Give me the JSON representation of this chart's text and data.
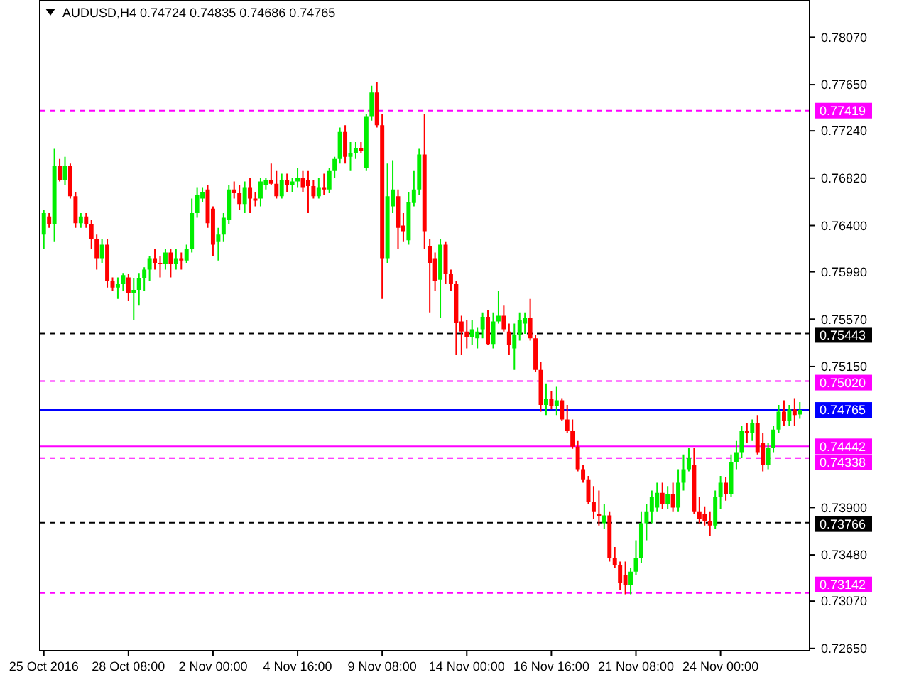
{
  "chart_data": {
    "type": "candlestick",
    "title": "AUDUSD,H4  0.74724 0.74835 0.74686 0.74765",
    "categories": [
      "25 Oct 2016",
      null,
      null,
      null,
      null,
      null,
      null,
      null,
      null,
      null,
      null,
      null,
      null,
      null,
      null,
      null,
      "28 Oct 08:00",
      null,
      null,
      null,
      null,
      null,
      null,
      null,
      null,
      null,
      null,
      null,
      null,
      null,
      null,
      null,
      "2 Nov 00:00",
      null,
      null,
      null,
      null,
      null,
      null,
      null,
      null,
      null,
      null,
      null,
      null,
      null,
      null,
      null,
      "4 Nov 16:00",
      null,
      null,
      null,
      null,
      null,
      null,
      null,
      null,
      null,
      null,
      null,
      null,
      null,
      null,
      null,
      "9 Nov 08:00",
      null,
      null,
      null,
      null,
      null,
      null,
      null,
      null,
      null,
      null,
      null,
      null,
      null,
      null,
      null,
      "14 Nov 00:00",
      null,
      null,
      null,
      null,
      null,
      null,
      null,
      null,
      null,
      null,
      null,
      null,
      null,
      null,
      null,
      "16 Nov 16:00",
      null,
      null,
      null,
      null,
      null,
      null,
      null,
      null,
      null,
      null,
      null,
      null,
      null,
      null,
      null,
      "21 Nov 08:00",
      null,
      null,
      null,
      null,
      null,
      null,
      null,
      null,
      null,
      null,
      null,
      null,
      null,
      null,
      null,
      "24 Nov 00:00",
      null,
      null,
      null,
      null,
      null,
      null,
      null,
      null,
      null,
      null,
      null,
      null,
      null,
      null,
      null
    ],
    "colors": [
      "#00ee00",
      "#ff0000",
      "#00ee00",
      "#ff0000",
      "#00ee00",
      "#ff0000",
      "#ff0000",
      "#00ee00",
      "#ff0000",
      "#ff0000",
      "#ff0000",
      "#00ee00",
      "#ff0000",
      "#ff0000",
      "#00ee00",
      "#00ee00",
      "#ff0000",
      "#00ee00",
      "#00ee00",
      "#00ee00",
      "#00ee00",
      "#ff0000",
      "#ff0000",
      "#00ee00",
      "#ff0000",
      "#00ee00",
      "#ff0000",
      "#00ee00",
      "#00ee00",
      "#00ee00",
      "#00ee00",
      "#ff0000",
      "#ff0000",
      "#00ee00",
      "#00ee00",
      "#00ee00",
      "#ff0000",
      "#ff0000",
      "#00ee00",
      "#ff0000",
      "#ff0000",
      "#00ee00",
      "#00ee00",
      "#ff0000",
      "#ff0000",
      "#00ee00",
      "#ff0000",
      "#00ee00",
      "#00ee00",
      "#ff0000",
      "#ff0000",
      "#ff0000",
      "#00ee00",
      "#ff0000",
      "#00ee00",
      "#00ee00",
      "#00ee00",
      "#ff0000",
      "#00ee00",
      "#00ee00",
      "#ff0000",
      "#00ee00",
      "#00ee00",
      "#ff0000",
      "#ff0000",
      "#00ee00",
      "#00ee00",
      "#ff0000",
      "#ff0000",
      "#00ee00",
      "#00ee00",
      "#00ee00",
      "#ff0000",
      "#ff0000",
      "#ff0000",
      "#00ee00",
      "#ff0000",
      "#ff0000",
      "#ff0000",
      "#ff0000",
      "#ff0000",
      "#00ee00",
      "#00ee00",
      "#00ee00",
      "#ff0000",
      "#00ee00",
      "#00ee00",
      "#ff0000",
      "#ff0000",
      "#00ee00",
      "#00ee00",
      "#00ee00",
      "#ff0000",
      "#ff0000",
      "#ff0000",
      "#00ee00",
      "#ff0000",
      "#00ee00",
      "#ff0000",
      "#ff0000",
      "#ff0000",
      "#ff0000",
      "#ff0000",
      "#ff0000",
      "#ff0000",
      "#ff0000",
      "#00ee00",
      "#ff0000",
      "#ff0000",
      "#ff0000",
      "#ff0000",
      "#00ee00",
      "#00ee00",
      "#00ee00",
      "#00ee00",
      "#00ee00",
      "#00ee00",
      "#ff0000",
      "#00ee00",
      "#ff0000",
      "#00ee00",
      "#00ee00",
      "#00ee00",
      "#ff0000",
      "#ff0000",
      "#ff0000",
      "#ff0000",
      "#00ee00",
      "#00ee00",
      "#ff0000",
      "#00ee00",
      "#00ee00",
      "#00ee00",
      "#ff0000",
      "#00ee00",
      "#ff0000",
      "#ff0000",
      "#00ee00",
      "#00ee00",
      "#00ee00",
      "#ff0000",
      "#00ee00",
      "#ff0000",
      "#00ee00"
    ],
    "ohlc": [
      [
        0.7632,
        0.7654,
        0.7619,
        0.7651
      ],
      [
        0.7648,
        0.7651,
        0.7638,
        0.7641
      ],
      [
        0.7641,
        0.7708,
        0.7626,
        0.7693
      ],
      [
        0.7693,
        0.7699,
        0.7679,
        0.768
      ],
      [
        0.768,
        0.7701,
        0.7676,
        0.7693
      ],
      [
        0.7693,
        0.7695,
        0.7664,
        0.7666
      ],
      [
        0.7666,
        0.767,
        0.7638,
        0.7642
      ],
      [
        0.7642,
        0.7651,
        0.7638,
        0.7648
      ],
      [
        0.7648,
        0.7651,
        0.7638,
        0.7641
      ],
      [
        0.7641,
        0.7645,
        0.7619,
        0.7628
      ],
      [
        0.7628,
        0.7632,
        0.7601,
        0.7611
      ],
      [
        0.7611,
        0.7628,
        0.7607,
        0.7623
      ],
      [
        0.7623,
        0.7628,
        0.7585,
        0.7591
      ],
      [
        0.7591,
        0.7594,
        0.7582,
        0.7585
      ],
      [
        0.7585,
        0.7594,
        0.7575,
        0.7588
      ],
      [
        0.7588,
        0.7598,
        0.7582,
        0.7596
      ],
      [
        0.7594,
        0.7597,
        0.7573,
        0.758
      ],
      [
        0.758,
        0.7593,
        0.7556,
        0.7583
      ],
      [
        0.7583,
        0.7598,
        0.7569,
        0.7593
      ],
      [
        0.7593,
        0.7603,
        0.7582,
        0.7601
      ],
      [
        0.7601,
        0.7613,
        0.7591,
        0.7611
      ],
      [
        0.7611,
        0.7619,
        0.7601,
        0.7607
      ],
      [
        0.7607,
        0.7613,
        0.7594,
        0.7606
      ],
      [
        0.7606,
        0.7619,
        0.7601,
        0.7616
      ],
      [
        0.7616,
        0.7619,
        0.7594,
        0.7606
      ],
      [
        0.7606,
        0.7619,
        0.7601,
        0.7611
      ],
      [
        0.7611,
        0.7616,
        0.7601,
        0.7609
      ],
      [
        0.7609,
        0.7623,
        0.7607,
        0.7619
      ],
      [
        0.7619,
        0.7664,
        0.7616,
        0.7651
      ],
      [
        0.7651,
        0.7674,
        0.7647,
        0.7667
      ],
      [
        0.7664,
        0.7674,
        0.7661,
        0.767
      ],
      [
        0.7672,
        0.7676,
        0.7638,
        0.7642
      ],
      [
        0.7655,
        0.7657,
        0.7613,
        0.7623
      ],
      [
        0.7626,
        0.7638,
        0.7609,
        0.7632
      ],
      [
        0.7632,
        0.7651,
        0.7626,
        0.7647
      ],
      [
        0.7645,
        0.7676,
        0.7641,
        0.7672
      ],
      [
        0.7672,
        0.7679,
        0.7664,
        0.7669
      ],
      [
        0.7669,
        0.7676,
        0.7654,
        0.7659
      ],
      [
        0.7659,
        0.7679,
        0.7651,
        0.7674
      ],
      [
        0.7674,
        0.7682,
        0.7651,
        0.7664
      ],
      [
        0.7664,
        0.767,
        0.7657,
        0.7662
      ],
      [
        0.7664,
        0.7682,
        0.7657,
        0.7679
      ],
      [
        0.7676,
        0.7682,
        0.7672,
        0.768
      ],
      [
        0.768,
        0.7695,
        0.7676,
        0.7677
      ],
      [
        0.7677,
        0.7689,
        0.7664,
        0.7666
      ],
      [
        0.7666,
        0.7686,
        0.7664,
        0.768
      ],
      [
        0.768,
        0.7686,
        0.767,
        0.7676
      ],
      [
        0.7676,
        0.7682,
        0.767,
        0.7679
      ],
      [
        0.7679,
        0.7691,
        0.7674,
        0.7682
      ],
      [
        0.7682,
        0.7689,
        0.767,
        0.7674
      ],
      [
        0.768,
        0.7689,
        0.7651,
        0.7675
      ],
      [
        0.7675,
        0.768,
        0.7664,
        0.7666
      ],
      [
        0.7666,
        0.7682,
        0.7664,
        0.7674
      ],
      [
        0.7674,
        0.7686,
        0.7667,
        0.7672
      ],
      [
        0.7672,
        0.7691,
        0.7669,
        0.7689
      ],
      [
        0.7689,
        0.7701,
        0.7682,
        0.7699
      ],
      [
        0.7699,
        0.7727,
        0.7695,
        0.7723
      ],
      [
        0.7723,
        0.7729,
        0.7695,
        0.7701
      ],
      [
        0.7701,
        0.7714,
        0.7689,
        0.7704
      ],
      [
        0.7704,
        0.7714,
        0.7699,
        0.7709
      ],
      [
        0.7709,
        0.7714,
        0.7704,
        0.7706
      ],
      [
        0.7691,
        0.7739,
        0.7689,
        0.7737
      ],
      [
        0.7737,
        0.7764,
        0.7733,
        0.7758
      ],
      [
        0.7758,
        0.7767,
        0.7727,
        0.7729
      ],
      [
        0.7729,
        0.7739,
        0.7575,
        0.7611
      ],
      [
        0.7611,
        0.7695,
        0.7607,
        0.7666
      ],
      [
        0.7657,
        0.7698,
        0.7651,
        0.7672
      ],
      [
        0.7666,
        0.7672,
        0.7619,
        0.7638
      ],
      [
        0.764,
        0.7651,
        0.7626,
        0.7635
      ],
      [
        0.7627,
        0.767,
        0.7623,
        0.7661
      ],
      [
        0.766,
        0.7689,
        0.7657,
        0.7672
      ],
      [
        0.7672,
        0.7708,
        0.7667,
        0.7703
      ],
      [
        0.7703,
        0.7739,
        0.7619,
        0.7635
      ],
      [
        0.7622,
        0.7628,
        0.7563,
        0.7607
      ],
      [
        0.7611,
        0.7616,
        0.7582,
        0.7591
      ],
      [
        0.7592,
        0.7628,
        0.7558,
        0.7623
      ],
      [
        0.7623,
        0.7626,
        0.7588,
        0.7597
      ],
      [
        0.7597,
        0.7601,
        0.7582,
        0.7588
      ],
      [
        0.7588,
        0.7591,
        0.7525,
        0.7554
      ],
      [
        0.7555,
        0.756,
        0.7525,
        0.7546
      ],
      [
        0.7546,
        0.7556,
        0.7531,
        0.7541
      ],
      [
        0.7541,
        0.7556,
        0.7534,
        0.7548
      ],
      [
        0.754,
        0.755,
        0.7531,
        0.7546
      ],
      [
        0.7548,
        0.7563,
        0.754,
        0.7559
      ],
      [
        0.7559,
        0.7565,
        0.7534,
        0.7535
      ],
      [
        0.7535,
        0.7563,
        0.7531,
        0.7555
      ],
      [
        0.7555,
        0.7582,
        0.7553,
        0.756
      ],
      [
        0.756,
        0.7569,
        0.7546,
        0.7548
      ],
      [
        0.7546,
        0.7553,
        0.7525,
        0.7534
      ],
      [
        0.7531,
        0.7553,
        0.7512,
        0.7543
      ],
      [
        0.7543,
        0.7563,
        0.7538,
        0.7556
      ],
      [
        0.7553,
        0.7563,
        0.7544,
        0.7558
      ],
      [
        0.7558,
        0.7575,
        0.7538,
        0.754
      ],
      [
        0.754,
        0.7543,
        0.751,
        0.7512
      ],
      [
        0.7512,
        0.7519,
        0.7475,
        0.7481
      ],
      [
        0.7481,
        0.75,
        0.7472,
        0.7486
      ],
      [
        0.7486,
        0.7493,
        0.7477,
        0.748
      ],
      [
        0.748,
        0.7497,
        0.7472,
        0.7485
      ],
      [
        0.7485,
        0.7487,
        0.7467,
        0.7468
      ],
      [
        0.7468,
        0.7481,
        0.7456,
        0.7458
      ],
      [
        0.7458,
        0.7468,
        0.7442,
        0.7444
      ],
      [
        0.7444,
        0.7449,
        0.7422,
        0.7424
      ],
      [
        0.7424,
        0.7428,
        0.7412,
        0.7415
      ],
      [
        0.7415,
        0.7418,
        0.7393,
        0.7395
      ],
      [
        0.7395,
        0.7409,
        0.738,
        0.7386
      ],
      [
        0.7384,
        0.7405,
        0.7374,
        0.7383
      ],
      [
        0.7376,
        0.7393,
        0.7371,
        0.7383
      ],
      [
        0.7383,
        0.7386,
        0.7342,
        0.7345
      ],
      [
        0.7345,
        0.7355,
        0.7336,
        0.7339
      ],
      [
        0.7339,
        0.7342,
        0.7317,
        0.7323
      ],
      [
        0.733,
        0.7342,
        0.7313,
        0.7321
      ],
      [
        0.7321,
        0.7336,
        0.7313,
        0.7333
      ],
      [
        0.7333,
        0.7361,
        0.733,
        0.7345
      ],
      [
        0.7345,
        0.7386,
        0.7341,
        0.7376
      ],
      [
        0.7376,
        0.7393,
        0.7361,
        0.7386
      ],
      [
        0.7386,
        0.7405,
        0.7376,
        0.7399
      ],
      [
        0.739,
        0.7412,
        0.7386,
        0.7403
      ],
      [
        0.7403,
        0.7412,
        0.7389,
        0.7393
      ],
      [
        0.7393,
        0.7409,
        0.7389,
        0.7402
      ],
      [
        0.7402,
        0.7412,
        0.7386,
        0.739
      ],
      [
        0.739,
        0.7424,
        0.7386,
        0.7412
      ],
      [
        0.7412,
        0.7437,
        0.7405,
        0.7424
      ],
      [
        0.7424,
        0.7443,
        0.7422,
        0.7434
      ],
      [
        0.7428,
        0.7443,
        0.7384,
        0.7386
      ],
      [
        0.7386,
        0.7399,
        0.7376,
        0.738
      ],
      [
        0.7384,
        0.7391,
        0.7374,
        0.7378
      ],
      [
        0.7378,
        0.7386,
        0.7365,
        0.7374
      ],
      [
        0.7374,
        0.7405,
        0.7371,
        0.7399
      ],
      [
        0.7399,
        0.7418,
        0.7389,
        0.7412
      ],
      [
        0.7412,
        0.7417,
        0.7396,
        0.7402
      ],
      [
        0.7402,
        0.7437,
        0.7399,
        0.743
      ],
      [
        0.743,
        0.7449,
        0.7424,
        0.7439
      ],
      [
        0.7439,
        0.7462,
        0.7434,
        0.7458
      ],
      [
        0.7458,
        0.7465,
        0.7447,
        0.7456
      ],
      [
        0.7456,
        0.7468,
        0.7449,
        0.7465
      ],
      [
        0.7465,
        0.7472,
        0.7437,
        0.7439
      ],
      [
        0.7447,
        0.7456,
        0.7422,
        0.7428
      ],
      [
        0.7428,
        0.7447,
        0.7424,
        0.7443
      ],
      [
        0.7443,
        0.7462,
        0.7439,
        0.7459
      ],
      [
        0.7459,
        0.7481,
        0.7456,
        0.7475
      ],
      [
        0.7475,
        0.7485,
        0.7462,
        0.7467
      ],
      [
        0.7467,
        0.7481,
        0.7462,
        0.7477
      ],
      [
        0.7477,
        0.7487,
        0.7462,
        0.7472
      ],
      [
        0.74724,
        0.74835,
        0.74686,
        0.74765
      ]
    ],
    "ylim": [
      0.7263,
      0.784
    ],
    "yticks": [
      {
        "value": 0.7807,
        "label": "0.78070"
      },
      {
        "value": 0.7765,
        "label": "0.77650"
      },
      {
        "value": 0.7724,
        "label": "0.77240"
      },
      {
        "value": 0.7682,
        "label": "0.76820"
      },
      {
        "value": 0.764,
        "label": "0.76400"
      },
      {
        "value": 0.7599,
        "label": "0.75990"
      },
      {
        "value": 0.7557,
        "label": "0.75570"
      },
      {
        "value": 0.7515,
        "label": "0.75150"
      },
      {
        "value": 0.739,
        "label": "0.73900"
      },
      {
        "value": 0.7348,
        "label": "0.73480"
      },
      {
        "value": 0.7307,
        "label": "0.73070"
      },
      {
        "value": 0.7265,
        "label": "0.72650"
      }
    ],
    "ref_lines": [
      {
        "axis": "y",
        "value": 0.77419,
        "label": "0.77419",
        "color": "#ff00ff",
        "line_style": "dashed"
      },
      {
        "axis": "y",
        "value": 0.75443,
        "label": "0.75443",
        "color": "#000000",
        "line_style": "dashed"
      },
      {
        "axis": "y",
        "value": 0.7502,
        "label": "0.75020",
        "color": "#ff00ff",
        "line_style": "dashed"
      },
      {
        "axis": "y",
        "value": 0.74765,
        "label": "0.74765",
        "color": "#0000ff",
        "line_style": "solid"
      },
      {
        "axis": "y",
        "value": 0.74442,
        "label": "0.74442",
        "color": "#ff00ff",
        "line_style": "solid"
      },
      {
        "axis": "y",
        "value": 0.74338,
        "label": "0.74338",
        "color": "#ff00ff",
        "line_style": "dashed"
      },
      {
        "axis": "y",
        "value": 0.73766,
        "label": "0.73766",
        "color": "#000000",
        "line_style": "dashed"
      },
      {
        "axis": "y",
        "value": 0.73142,
        "label": "0.73142",
        "color": "#ff00ff",
        "line_style": "dashed"
      }
    ]
  }
}
